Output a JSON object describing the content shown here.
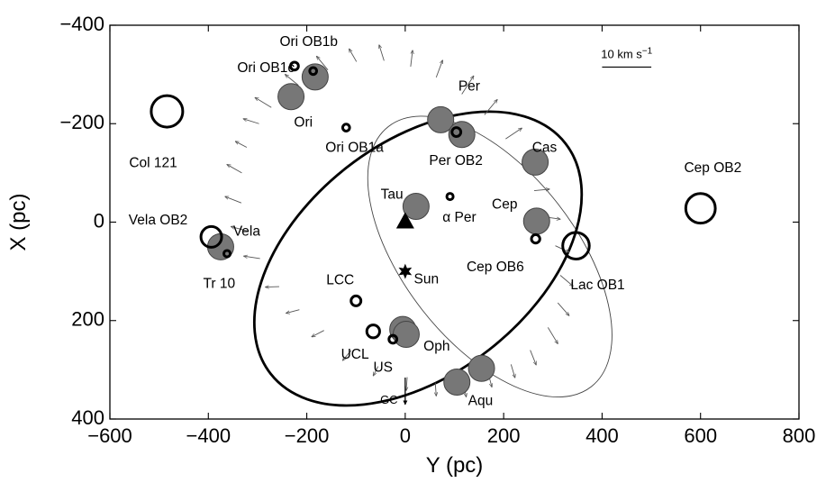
{
  "chart_data": {
    "type": "scatter",
    "xlabel": "Y (pc)",
    "ylabel": "X (pc)",
    "xlim": [
      -600,
      800
    ],
    "ylim": [
      400,
      -400
    ],
    "y_inverted": true,
    "x_ticks": [
      -600,
      -400,
      -200,
      0,
      200,
      400,
      600,
      800
    ],
    "y_ticks": [
      -400,
      -200,
      0,
      200,
      400
    ],
    "x_tick_labels": [
      "−600",
      "−400",
      "−200",
      "0",
      "200",
      "400",
      "600",
      "800"
    ],
    "y_tick_labels": [
      "−400",
      "−200",
      "0",
      "200",
      "400"
    ],
    "grid": false,
    "scale_bar": {
      "label_main": "10 km s",
      "label_sup": "−1",
      "velocity_kms": 10,
      "length_y_pc": 100,
      "y_start": 400,
      "x": -315
    },
    "filled_circles": [
      {
        "name": "Ori",
        "y": -232,
        "x": -255
      },
      {
        "name": "Ori",
        "y": -183,
        "x": -295
      },
      {
        "name": "Tau",
        "y": 22,
        "x": -32
      },
      {
        "name": "Per",
        "y": 72,
        "x": -208
      },
      {
        "name": "Per",
        "y": 115,
        "x": -178
      },
      {
        "name": "Cas",
        "y": 264,
        "x": -122
      },
      {
        "name": "Cep",
        "y": 267,
        "x": -2
      },
      {
        "name": "Vela",
        "y": -375,
        "x": 50
      },
      {
        "name": "Oph",
        "y": -5,
        "x": 218
      },
      {
        "name": "Oph",
        "y": 2,
        "x": 228
      },
      {
        "name": "Aqu",
        "y": 155,
        "x": 297
      },
      {
        "name": "Aqu",
        "y": 105,
        "x": 325
      }
    ],
    "open_circles": [
      {
        "name": "Col 121",
        "y": -484,
        "x": -225,
        "r_pc": 32
      },
      {
        "name": "Cep OB2",
        "y": 600,
        "x": -28,
        "r_pc": 30
      },
      {
        "name": "Lac OB1",
        "y": 347,
        "x": 48,
        "r_pc": 27
      },
      {
        "name": "Vela OB2",
        "y": -394,
        "x": 30,
        "r_pc": 21
      },
      {
        "name": "UCL",
        "y": -65,
        "x": 222,
        "r_pc": 13
      },
      {
        "name": "Ori OB1b",
        "y": -187,
        "x": -307,
        "r_pc": 7
      },
      {
        "name": "Ori OB1c",
        "y": -225,
        "x": -317,
        "r_pc": 8
      },
      {
        "name": "Ori OB1a",
        "y": -120,
        "x": -192,
        "r_pc": 7
      },
      {
        "name": "Per OB2",
        "y": 104,
        "x": -183,
        "r_pc": 9
      },
      {
        "name": "α Per",
        "y": 91,
        "x": -52,
        "r_pc": 3
      },
      {
        "name": "Cep OB6",
        "y": 265,
        "x": 34,
        "r_pc": 8.5
      },
      {
        "name": "Tr 10",
        "y": -362,
        "x": 64,
        "r_pc": 6
      },
      {
        "name": "LCC",
        "y": -100,
        "x": 160,
        "r_pc": 10
      },
      {
        "name": "US",
        "y": -25,
        "x": 238,
        "r_pc": 8
      }
    ],
    "sun": {
      "name": "Sun",
      "y": 0,
      "x": 100
    },
    "triangle": {
      "y": 0,
      "x": 0
    },
    "thick_ellipse": {
      "center_y": 26,
      "center_x": 74,
      "a_pc": 380,
      "b_pc": 235,
      "angle_deg": -38
    },
    "thin_ellipse": {
      "center_y": 172,
      "center_x": 70,
      "a_pc": 335,
      "b_pc": 175,
      "angle_deg": 52
    },
    "labels": [
      {
        "text": "Ori OB1b",
        "y": -196,
        "x": -365,
        "anchor": "middle"
      },
      {
        "text": "Ori OB1c",
        "y": -283,
        "x": -312,
        "anchor": "middle"
      },
      {
        "text": "Ori",
        "y": -207,
        "x": -202,
        "anchor": "middle"
      },
      {
        "text": "Col 121",
        "y": -512,
        "x": -119,
        "anchor": "middle"
      },
      {
        "text": "Ori OB1a",
        "y": -103,
        "x": -150,
        "anchor": "middle"
      },
      {
        "text": "Per",
        "y": 130,
        "x": -275,
        "anchor": "middle"
      },
      {
        "text": "Per OB2",
        "y": 103,
        "x": -124,
        "anchor": "middle"
      },
      {
        "text": "Cas",
        "y": 283,
        "x": -150,
        "anchor": "middle"
      },
      {
        "text": "Cep OB2",
        "y": 625,
        "x": -109,
        "anchor": "middle"
      },
      {
        "text": "Tau",
        "y": -27,
        "x": -55,
        "anchor": "middle"
      },
      {
        "text": "Cep",
        "y": 202,
        "x": -35,
        "anchor": "middle"
      },
      {
        "text": "α Per",
        "y": 110,
        "x": -8,
        "anchor": "middle"
      },
      {
        "text": "Vela OB2",
        "y": -502,
        "x": -3,
        "anchor": "middle"
      },
      {
        "text": "Vela",
        "y": -322,
        "x": 20,
        "anchor": "middle"
      },
      {
        "text": "Cep OB6",
        "y": 183,
        "x": 92,
        "anchor": "middle"
      },
      {
        "text": "Sun",
        "y": 43,
        "x": 117,
        "anchor": "middle"
      },
      {
        "text": "Tr 10",
        "y": -378,
        "x": 126,
        "anchor": "middle"
      },
      {
        "text": "Lac OB1",
        "y": 391,
        "x": 129,
        "anchor": "middle"
      },
      {
        "text": "LCC",
        "y": -132,
        "x": 119,
        "anchor": "middle"
      },
      {
        "text": "UCL",
        "y": -102,
        "x": 270,
        "anchor": "middle"
      },
      {
        "text": "Oph",
        "y": 64,
        "x": 253,
        "anchor": "middle"
      },
      {
        "text": "US",
        "y": -45,
        "x": 296,
        "anchor": "middle"
      },
      {
        "text": "Aqu",
        "y": 153,
        "x": 364,
        "anchor": "middle"
      }
    ],
    "gc_label": {
      "text": "GC",
      "y": -33,
      "x": 363
    },
    "arrows": [
      {
        "y": -272,
        "x": -233,
        "dy": -33,
        "dx": -20
      },
      {
        "y": -217,
        "x": -278,
        "dy": -27,
        "dx": -22
      },
      {
        "y": -157,
        "x": -309,
        "dy": -23,
        "dx": -28
      },
      {
        "y": -99,
        "x": -326,
        "dy": -15,
        "dx": -26
      },
      {
        "y": -43,
        "x": -328,
        "dy": -10,
        "dx": -32
      },
      {
        "y": 11,
        "x": -316,
        "dy": 4,
        "dx": -33
      },
      {
        "y": 63,
        "x": -294,
        "dy": 13,
        "dx": -35
      },
      {
        "y": 115,
        "x": -260,
        "dy": 24,
        "dx": -37
      },
      {
        "y": 161,
        "x": -218,
        "dy": 26,
        "dx": -31
      },
      {
        "y": 204,
        "x": -169,
        "dy": 33,
        "dx": -22
      },
      {
        "y": 236,
        "x": -118,
        "dy": 32,
        "dx": -11
      },
      {
        "y": 262,
        "x": -64,
        "dy": 31,
        "dx": -3
      },
      {
        "y": 288,
        "x": -10,
        "dy": 27,
        "dx": 4
      },
      {
        "y": 305,
        "x": 48,
        "dy": 28,
        "dx": 13
      },
      {
        "y": 315,
        "x": 108,
        "dy": 26,
        "dx": 22
      },
      {
        "y": 310,
        "x": 164,
        "dy": 23,
        "dx": 26
      },
      {
        "y": 290,
        "x": 214,
        "dy": 20,
        "dx": 33
      },
      {
        "y": 254,
        "x": 260,
        "dy": 12,
        "dx": 30
      },
      {
        "y": 215,
        "x": 289,
        "dy": 8,
        "dx": 27
      },
      {
        "y": 170,
        "x": 312,
        "dy": 6,
        "dx": 23
      },
      {
        "y": 118,
        "x": 328,
        "dy": 6,
        "dx": 27
      },
      {
        "y": 61,
        "x": 326,
        "dy": 2,
        "dx": 27
      },
      {
        "y": 4,
        "x": 315,
        "dy": -2,
        "dx": 27
      },
      {
        "y": -55,
        "x": 293,
        "dy": -10,
        "dx": 19
      },
      {
        "y": -110,
        "x": 261,
        "dy": -17,
        "dx": 20
      },
      {
        "y": -165,
        "x": 220,
        "dy": -25,
        "dx": 13
      },
      {
        "y": -215,
        "x": 178,
        "dy": -27,
        "dx": 7
      },
      {
        "y": -256,
        "x": 131,
        "dy": -28,
        "dx": 1
      },
      {
        "y": -295,
        "x": 74,
        "dy": -33,
        "dx": -5
      },
      {
        "y": -321,
        "x": 18,
        "dy": -33,
        "dx": -9
      },
      {
        "y": -333,
        "x": -39,
        "dy": -33,
        "dx": -13
      },
      {
        "y": -332,
        "x": -100,
        "dy": -30,
        "dx": -17
      },
      {
        "y": -322,
        "x": -152,
        "dy": -23,
        "dx": -12
      },
      {
        "y": -297,
        "x": -200,
        "dy": -32,
        "dx": -10
      }
    ]
  }
}
